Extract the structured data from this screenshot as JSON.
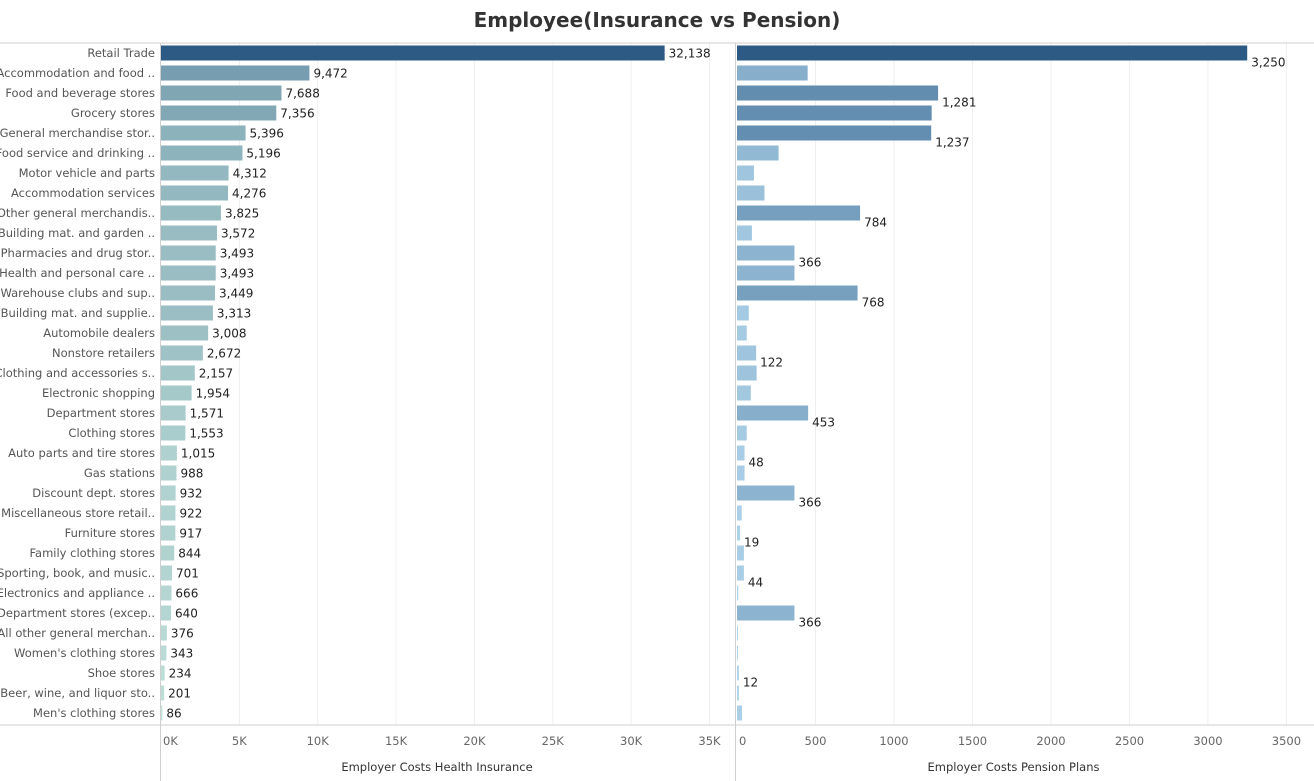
{
  "chart_data": {
    "type": "bar",
    "orientation": "horizontal",
    "title": "Employee(Insurance vs Pension)",
    "categories": [
      "Retail Trade",
      "Accommodation and food ..",
      "Food and beverage stores",
      "Grocery stores",
      "General merchandise stor..",
      "Food service and drinking ..",
      "Motor vehicle and parts",
      "Accommodation services",
      "Other general merchandis..",
      "Building mat. and garden ..",
      "Pharmacies and drug stor..",
      "Health and personal care ..",
      "Warehouse clubs and sup..",
      "Building mat. and supplie..",
      "Automobile dealers",
      "Nonstore retailers",
      "Clothing and accessories s..",
      "Electronic shopping",
      "Department stores",
      "Clothing stores",
      "Auto parts and tire stores",
      "Gas stations",
      "Discount dept. stores",
      "Miscellaneous store retail..",
      "Furniture stores",
      "Family clothing stores",
      "Sporting, book, and  music..",
      "Electronics and appliance ..",
      "Department stores (excep..",
      "All other general merchan..",
      "Women's clothing stores",
      "Shoe stores",
      "Beer, wine, and liquor sto..",
      "Men's clothing stores"
    ],
    "series": [
      {
        "xlabel": "Employer Costs Health Insurance",
        "xlim": [
          0,
          36500
        ],
        "ticks": [
          0,
          5000,
          10000,
          15000,
          20000,
          25000,
          30000,
          35000
        ],
        "tick_labels": [
          "0K",
          "5K",
          "10K",
          "15K",
          "20K",
          "25K",
          "30K",
          "35K"
        ],
        "values": [
          32138,
          9472,
          7688,
          7356,
          5396,
          5196,
          4312,
          4276,
          3825,
          3572,
          3493,
          3493,
          3449,
          3313,
          3008,
          2672,
          2157,
          1954,
          1571,
          1553,
          1015,
          988,
          932,
          922,
          917,
          844,
          701,
          666,
          640,
          376,
          343,
          234,
          201,
          86
        ],
        "labels": [
          "32,138",
          "9,472",
          "7,688",
          "7,356",
          "5,396",
          "5,196",
          "4,312",
          "4,276",
          "3,825",
          "3,572",
          "3,493",
          "3,493",
          "3,449",
          "3,313",
          "3,008",
          "2,672",
          "2,157",
          "1,954",
          "1,571",
          "1,553",
          "1,015",
          "988",
          "932",
          "922",
          "917",
          "844",
          "701",
          "666",
          "640",
          "376",
          "343",
          "234",
          "201",
          "86"
        ],
        "color_scale": [
          "#c6e6dc",
          "#2c5a85"
        ]
      },
      {
        "xlabel": "Employer Costs Pension Plans",
        "xlim": [
          0,
          3650
        ],
        "ticks": [
          0,
          500,
          1000,
          1500,
          2000,
          2500,
          3000,
          3500
        ],
        "tick_labels": [
          "0",
          "500",
          "1000",
          "1500",
          "2000",
          "2500",
          "3000",
          "3500"
        ],
        "values": [
          3250,
          450,
          1281,
          1240,
          1237,
          265,
          108,
          175,
          784,
          95,
          366,
          366,
          768,
          75,
          62,
          122,
          125,
          88,
          453,
          62,
          48,
          48,
          366,
          30,
          19,
          44,
          44,
          8,
          366,
          6,
          6,
          12,
          12,
          32
        ],
        "labels": [
          "3,250",
          "",
          "1,281",
          "",
          "1,237",
          "",
          "",
          "",
          "784",
          "",
          "366",
          "",
          "768",
          "",
          "",
          "122",
          "",
          "",
          "453",
          "",
          "48",
          "",
          "366",
          "",
          "19",
          "",
          "44",
          "",
          "366",
          "",
          "",
          "12",
          "",
          ""
        ],
        "color_scale": [
          "#b5d9ef",
          "#2c5a85"
        ]
      }
    ],
    "grid": true,
    "legend": "none"
  }
}
